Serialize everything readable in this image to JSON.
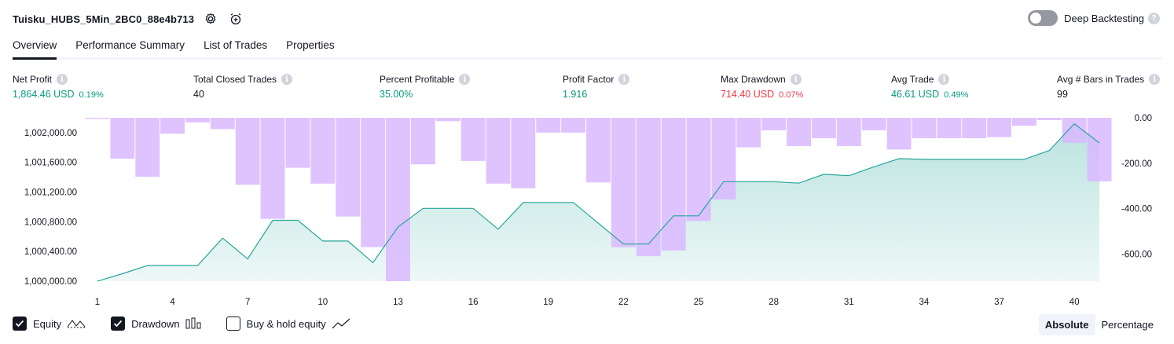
{
  "header": {
    "strategy_name": "Tuisku_HUBS_5Min_2BC0_88e4b713",
    "settings_icon": "gear-icon",
    "alert_icon": "alarm-clock-plus-icon",
    "deep_backtesting_label": "Deep Backtesting",
    "deep_backtesting_enabled": false,
    "help_glyph": "?"
  },
  "tabs": [
    {
      "label": "Overview",
      "active": true
    },
    {
      "label": "Performance Summary",
      "active": false
    },
    {
      "label": "List of Trades",
      "active": false
    },
    {
      "label": "Properties",
      "active": false
    }
  ],
  "stats": [
    {
      "label": "Net Profit",
      "value": "1,864.46 USD",
      "pct": "0.19%",
      "color": "#089981"
    },
    {
      "label": "Total Closed Trades",
      "value": "40",
      "pct": "",
      "color": "#131722"
    },
    {
      "label": "Percent Profitable",
      "value": "35.00%",
      "pct": "",
      "color": "#089981"
    },
    {
      "label": "Profit Factor",
      "value": "1.916",
      "pct": "",
      "color": "#089981"
    },
    {
      "label": "Max Drawdown",
      "value": "714.40 USD",
      "pct": "0.07%",
      "color": "#f23645"
    },
    {
      "label": "Avg Trade",
      "value": "46.61 USD",
      "pct": "0.49%",
      "color": "#089981"
    },
    {
      "label": "Avg # Bars in Trades",
      "value": "99",
      "pct": "",
      "color": "#131722"
    }
  ],
  "info_glyph": "i",
  "chart_data": {
    "type": "line",
    "x": [
      1,
      2,
      3,
      4,
      5,
      6,
      7,
      8,
      9,
      10,
      11,
      12,
      13,
      14,
      15,
      16,
      17,
      18,
      19,
      20,
      21,
      22,
      23,
      24,
      25,
      26,
      27,
      28,
      29,
      30,
      31,
      32,
      33,
      34,
      35,
      36,
      37,
      38,
      39,
      40,
      41
    ],
    "x_tick_labels": [
      "1",
      "4",
      "7",
      "10",
      "13",
      "16",
      "19",
      "22",
      "25",
      "28",
      "31",
      "34",
      "37",
      "40"
    ],
    "left_axis": {
      "ylim": [
        1000000,
        1002200
      ],
      "tick_values": [
        1000000,
        1000400,
        1000800,
        1001200,
        1001600,
        1002000
      ],
      "tick_labels": [
        "1,000,000.00",
        "1,000,400.00",
        "1,000,800.00",
        "1,001,200.00",
        "1,001,600.00",
        "1,002,000.00"
      ]
    },
    "right_axis": {
      "ylim": [
        -720,
        0
      ],
      "tick_values": [
        0,
        -200,
        -400,
        -600
      ],
      "tick_labels": [
        "0.00",
        "-200.00",
        "-400.00",
        "-600.00"
      ]
    },
    "series": [
      {
        "name": "Equity",
        "type": "area",
        "axis": "left",
        "color": "#26a69a",
        "values": [
          1000000,
          1000100,
          1000210,
          1000210,
          1000210,
          1000580,
          1000300,
          1000820,
          1000820,
          1000540,
          1000540,
          1000250,
          1000730,
          1000980,
          1000980,
          1000980,
          1000700,
          1001060,
          1001060,
          1001060,
          1000780,
          1000500,
          1000500,
          1000880,
          1000880,
          1001340,
          1001340,
          1001340,
          1001320,
          1001440,
          1001420,
          1001540,
          1001650,
          1001640,
          1001640,
          1001640,
          1001640,
          1001640,
          1001760,
          1002120,
          1001860
        ]
      },
      {
        "name": "Drawdown",
        "type": "bar",
        "axis": "right",
        "color": "#d9b8ff",
        "values": [
          -5,
          -180,
          -260,
          -70,
          -20,
          -50,
          -295,
          -445,
          -220,
          -290,
          -435,
          -570,
          -720,
          -205,
          -15,
          -190,
          -290,
          -310,
          -65,
          -65,
          -285,
          -570,
          -610,
          -585,
          -455,
          -360,
          -130,
          -55,
          -125,
          -90,
          -125,
          -55,
          -140,
          -90,
          -90,
          -90,
          -85,
          -35,
          -10,
          -110,
          -280
        ]
      }
    ]
  },
  "legend": [
    {
      "label": "Equity",
      "checked": true,
      "icon": "equity-line-icon"
    },
    {
      "label": "Drawdown",
      "checked": true,
      "icon": "drawdown-bars-icon"
    },
    {
      "label": "Buy & hold equity",
      "checked": false,
      "icon": "trend-line-icon"
    }
  ],
  "scale_toggle": [
    {
      "label": "Absolute",
      "active": true
    },
    {
      "label": "Percentage",
      "active": false
    }
  ]
}
